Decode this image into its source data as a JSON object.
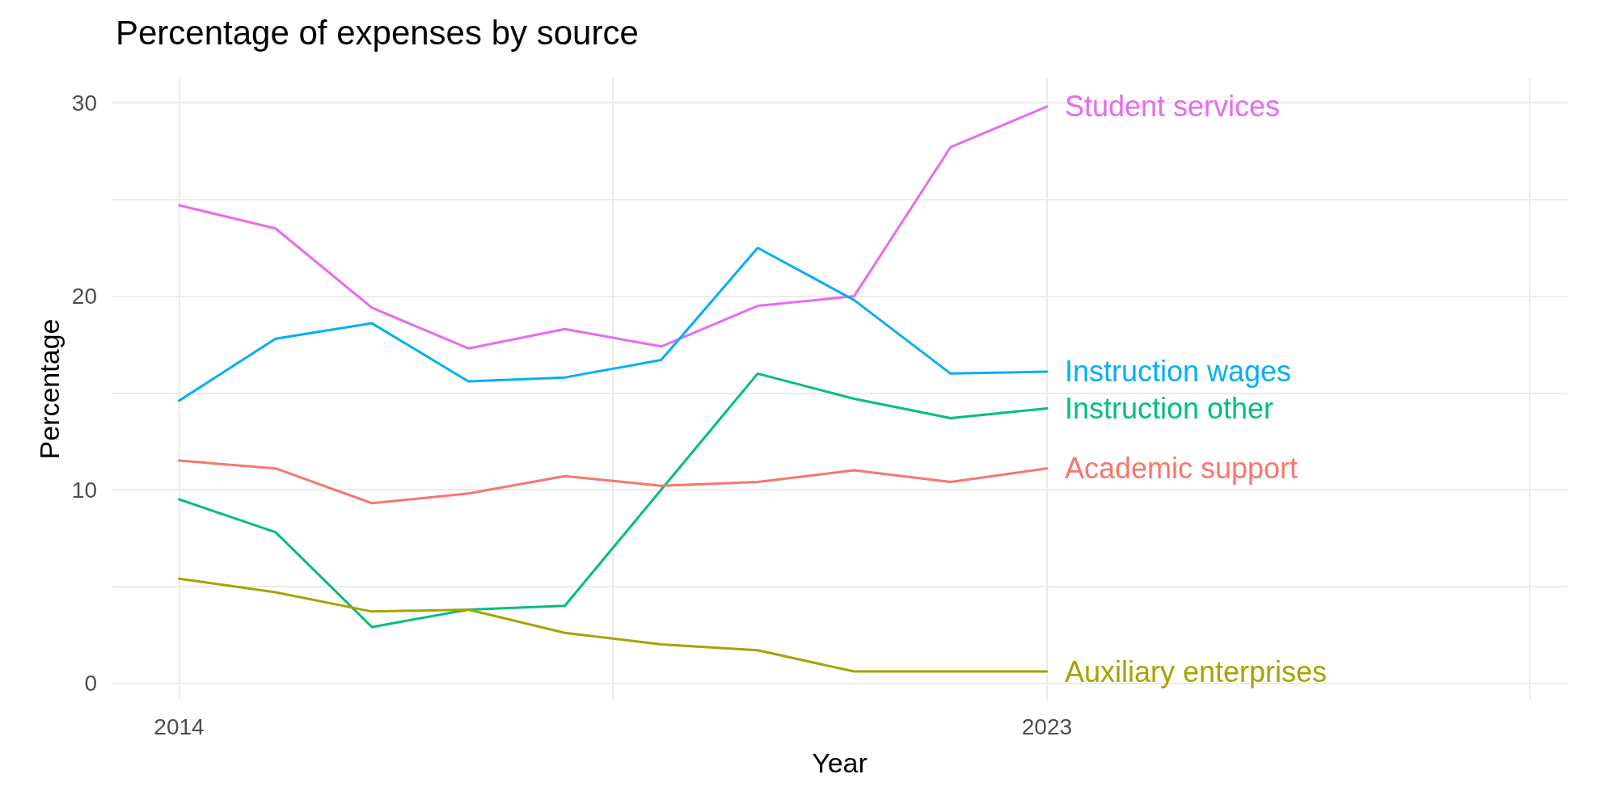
{
  "chart_data": {
    "type": "line",
    "title": "Percentage of expenses by source",
    "xlabel": "Year",
    "ylabel": "Percentage",
    "x": [
      2014,
      2015,
      2016,
      2017,
      2018,
      2019,
      2020,
      2021,
      2022,
      2023
    ],
    "series": [
      {
        "name": "Student services",
        "color": "#e76bf3",
        "values": [
          24.7,
          23.5,
          19.4,
          17.3,
          18.3,
          17.4,
          19.5,
          20.0,
          27.7,
          29.8
        ]
      },
      {
        "name": "Instruction wages",
        "color": "#00b0f6",
        "values": [
          14.6,
          17.8,
          18.6,
          15.6,
          15.8,
          16.7,
          22.5,
          19.8,
          16.0,
          16.1
        ]
      },
      {
        "name": "Instruction other",
        "color": "#00bf7d",
        "values": [
          9.5,
          7.8,
          2.9,
          3.8,
          4.0,
          10.0,
          16.0,
          14.7,
          13.7,
          14.2
        ]
      },
      {
        "name": "Academic support",
        "color": "#f8766d",
        "values": [
          11.5,
          11.1,
          9.3,
          9.8,
          10.7,
          10.2,
          10.4,
          11.0,
          10.4,
          11.1
        ]
      },
      {
        "name": "Auxiliary enterprises",
        "color": "#a3a500",
        "values": [
          5.4,
          4.7,
          3.7,
          3.8,
          2.6,
          2.0,
          1.7,
          0.6,
          0.6,
          0.6
        ]
      }
    ],
    "xlim": [
      2013.3,
      2028.4
    ],
    "xticks": [
      2014,
      {
        "value": 2018.5,
        "label": null
      },
      2023,
      {
        "value": 2028,
        "label": null
      }
    ],
    "ylim": [
      -0.9,
      31.3
    ],
    "yticks": [
      0,
      {
        "value": 5,
        "label": null
      },
      10,
      {
        "value": 15,
        "label": null
      },
      20,
      {
        "value": 25,
        "label": null
      },
      30
    ],
    "grid": true,
    "legend": false,
    "marker": "none",
    "line_style": "solid"
  }
}
